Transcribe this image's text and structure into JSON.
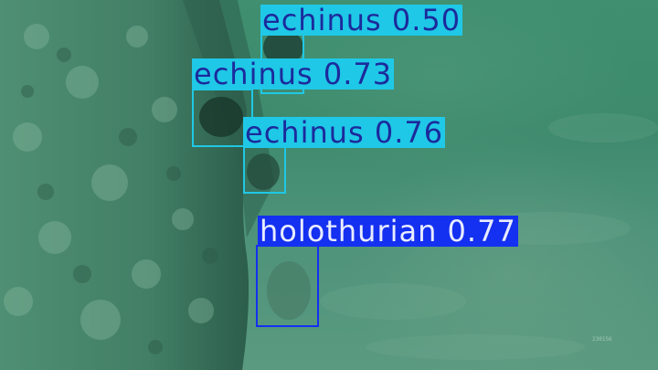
{
  "scene": {
    "kind": "underwater seafloor photo with object detection overlays",
    "detections": [
      {
        "class": "echinus",
        "score": "0.50",
        "color": "#1fc8e6",
        "text_color": "#1c2a9c"
      },
      {
        "class": "echinus",
        "score": "0.73",
        "color": "#1fc8e6",
        "text_color": "#1c2a9c"
      },
      {
        "class": "echinus",
        "score": "0.76",
        "color": "#1fc8e6",
        "text_color": "#1c2a9c"
      },
      {
        "class": "holothurian",
        "score": "0.77",
        "color": "#1430f0",
        "text_color": "#e8ecff"
      }
    ],
    "labels": {
      "det0": "echinus 0.50",
      "det1": "echinus 0.73",
      "det2": "echinus 0.76",
      "det3": "holothurian 0.77"
    },
    "watermark": "230156"
  }
}
